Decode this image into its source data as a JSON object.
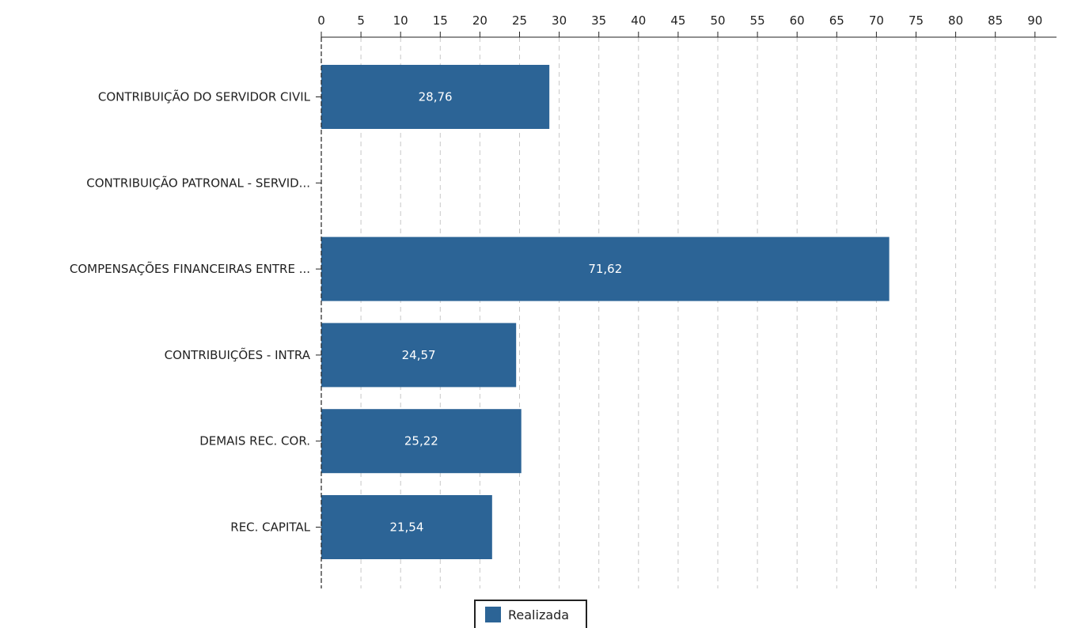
{
  "chart_data": {
    "type": "bar",
    "orientation": "horizontal",
    "categories": [
      "CONTRIBUIÇÃO DO SERVIDOR CIVIL",
      "CONTRIBUIÇÃO PATRONAL - SERVID...",
      "COMPENSAÇÕES FINANCEIRAS ENTRE ...",
      "CONTRIBUIÇÕES - INTRA",
      "DEMAIS REC. COR.",
      "REC. CAPITAL"
    ],
    "series": [
      {
        "name": "Realizada",
        "color": "#2c6496",
        "values": [
          28.76,
          0,
          71.62,
          24.57,
          25.22,
          21.54
        ],
        "value_labels": [
          "28,76",
          "",
          "71,62",
          "24,57",
          "25,22",
          "21,54"
        ]
      }
    ],
    "xlim": [
      0,
      92
    ],
    "xticks": [
      0,
      5,
      10,
      15,
      20,
      25,
      30,
      35,
      40,
      45,
      50,
      55,
      60,
      65,
      70,
      75,
      80,
      85,
      90
    ],
    "x_axis_position": "top",
    "grid": "vertical dashed",
    "legend_position": "bottom-center",
    "title": "",
    "xlabel": "",
    "ylabel": ""
  },
  "legend": {
    "label": "Realizada",
    "color": "#2c6496"
  }
}
